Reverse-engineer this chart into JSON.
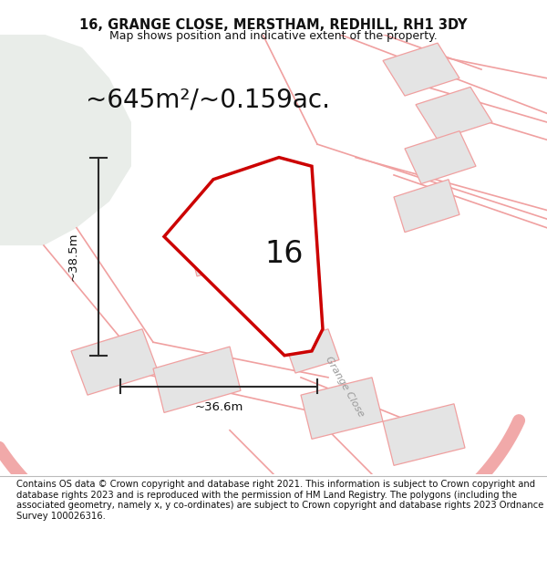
{
  "title_line1": "16, GRANGE CLOSE, MERSTHAM, REDHILL, RH1 3DY",
  "title_line2": "Map shows position and indicative extent of the property.",
  "area_text": "~645m²/~0.159ac.",
  "number_label": "16",
  "dim_vertical": "~38.5m",
  "dim_horizontal": "~36.6m",
  "road_label": "Grange Close",
  "footer_text": "Contains OS data © Crown copyright and database right 2021. This information is subject to Crown copyright and database rights 2023 and is reproduced with the permission of HM Land Registry. The polygons (including the associated geometry, namely x, y co-ordinates) are subject to Crown copyright and database rights 2023 Ordnance Survey 100026316.",
  "bg_color": "#ffffff",
  "map_bg": "#f5f5f5",
  "green_area_color": "#e9ede9",
  "property_fill": "#ffffff",
  "property_edge": "#cc0000",
  "other_poly_fill": "#e4e4e4",
  "other_poly_edge": "#f0a0a0",
  "road_line_color": "#f0a0a0",
  "dim_line_color": "#2a2a2a",
  "title_fontsize": 10.5,
  "subtitle_fontsize": 9,
  "area_fontsize": 20,
  "number_fontsize": 24,
  "dim_fontsize": 9.5,
  "footer_fontsize": 7.2,
  "road_label_fontsize": 8
}
